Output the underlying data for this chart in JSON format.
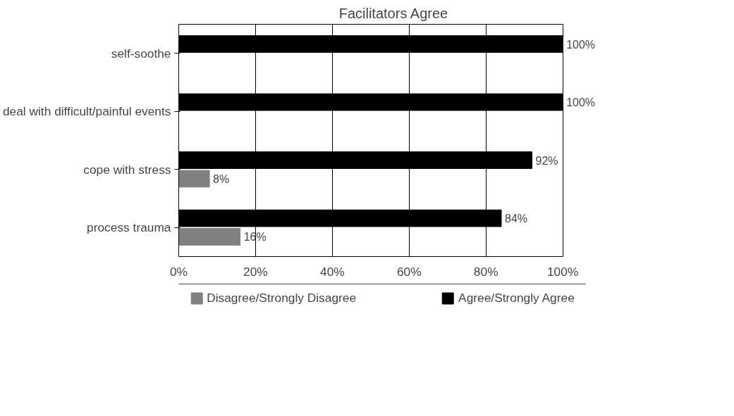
{
  "chart_data": {
    "type": "bar",
    "orientation": "horizontal",
    "title": "Facilitators Agree",
    "categories": [
      "self-soothe",
      "deal with difficult/painful events",
      "cope with stress",
      "process trauma"
    ],
    "series": [
      {
        "name": "Disagree/Strongly Disagree",
        "color": "#808080",
        "values": [
          null,
          null,
          8,
          16
        ],
        "value_labels": [
          null,
          null,
          "8%",
          "16%"
        ]
      },
      {
        "name": "Agree/Strongly Agree",
        "color": "#000000",
        "values": [
          100,
          100,
          92,
          84
        ],
        "value_labels": [
          "100%",
          "100%",
          "92%",
          "84%"
        ]
      }
    ],
    "xlim": [
      0,
      100
    ],
    "xticks": [
      {
        "value": 0,
        "label": "0%"
      },
      {
        "value": 20,
        "label": "20%"
      },
      {
        "value": 40,
        "label": "40%"
      },
      {
        "value": 60,
        "label": "60%"
      },
      {
        "value": 80,
        "label": "80%"
      },
      {
        "value": 100,
        "label": "100%"
      }
    ],
    "grid": "x",
    "legend": "bottom"
  }
}
